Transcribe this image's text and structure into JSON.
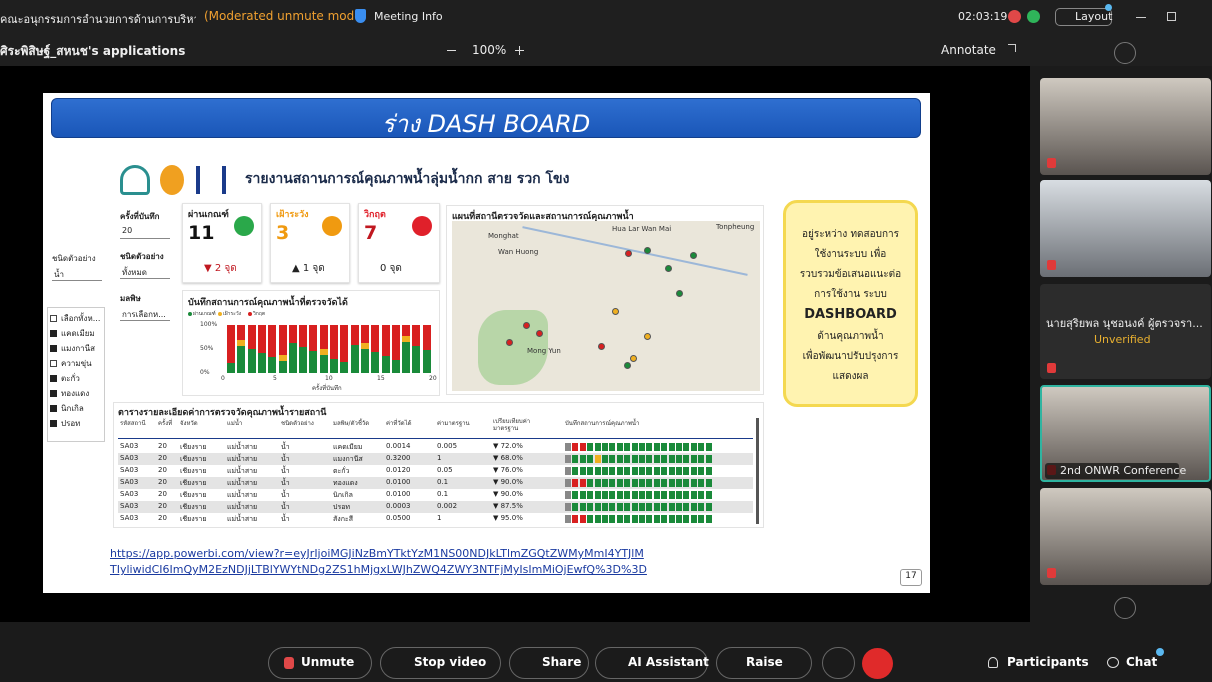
{
  "top_bar": {
    "meeting_title": "คณะอนุกรรมการอำนวยการด้านการบริหารจัด...",
    "mode": "(Moderated unmute mode)",
    "meeting_info": "Meeting Info",
    "timer": "02:03:19",
    "layout": "Layout"
  },
  "share_bar": {
    "owner": "ศิระพิสิษฐ์_สหนช's applications",
    "zoom": "100%",
    "annotate": "Annotate"
  },
  "slide": {
    "title": "ร่าง DASH BOARD",
    "dashboard": {
      "report_title": "รายงานสถานการณ์คุณภาพน้ำลุ่มน้ำกก สาย รวก โขง",
      "filters": [
        {
          "label": "ครั้งที่บันทึก",
          "value": "20"
        },
        {
          "label": "ชนิดตัวอย่าง",
          "value": "ทั้งหมด"
        },
        {
          "label": "มลพิษ",
          "value": "การเลือกห..."
        }
      ],
      "side_filter": {
        "label": "ชนิดตัวอย่าง",
        "value": "น้ำ"
      },
      "pollutant_list": [
        "เลือกทั้งห...",
        "แคดเมียม",
        "แมงกานีส",
        "ความขุ่น",
        "ตะกั่ว",
        "ทองแดง",
        "นิกเกิล",
        "ปรอท"
      ],
      "kpis": [
        {
          "label": "ผ่านเกณฑ์",
          "value": "11",
          "change": "▼ 2 จุด"
        },
        {
          "label": "เฝ้าระวัง",
          "value": "3",
          "change": "▲ 1 จุด"
        },
        {
          "label": "วิกฤต",
          "value": "7",
          "change": "0 จุด"
        }
      ],
      "chart": {
        "title": "บันทึกสถานการณ์คุณภาพน้ำที่ตรวจวัดได้",
        "legend": [
          "ผ่านเกณฑ์",
          "เฝ้าระวัง",
          "วิกฤต"
        ],
        "y_labels": [
          "100%",
          "50%",
          "0%"
        ],
        "x_labels": [
          "0",
          "5",
          "10",
          "15",
          "20"
        ],
        "x_title": "ครั้งที่บันทึก"
      },
      "map": {
        "title": "แผนที่สถานีตรวจวัดและสถานการณ์คุณภาพน้ำ",
        "places": [
          "Monghat",
          "Wan Huong",
          "Mong Yun",
          "Hua Lar Wan Mai",
          "Tonpheung"
        ]
      },
      "table": {
        "title": "ตารางรายละเอียดค่าการตรวจวัดคุณภาพน้ำรายสถานี",
        "columns": [
          "รหัสสถานี",
          "ครั้งที่",
          "จังหวัด",
          "แม่น้ำ",
          "ชนิดตัวอย่าง",
          "มลพิษ/ตัวชี้วัด",
          "ค่าที่วัดได้",
          "ค่ามาตรฐาน",
          "เปรียบเทียบค่ามาตรฐาน",
          "บันทึกสถานการณ์คุณภาพน้ำ"
        ],
        "rows": [
          [
            "SA03",
            "20",
            "เชียงราย",
            "แม่น้ำสาย",
            "น้ำ",
            "แคดเมียม",
            "0.0014",
            "0.005",
            "▼ 72.0%"
          ],
          [
            "SA03",
            "20",
            "เชียงราย",
            "แม่น้ำสาย",
            "น้ำ",
            "แมงกานีส",
            "0.3200",
            "1",
            "▼ 68.0%"
          ],
          [
            "SA03",
            "20",
            "เชียงราย",
            "แม่น้ำสาย",
            "น้ำ",
            "ตะกั่ว",
            "0.0120",
            "0.05",
            "▼ 76.0%"
          ],
          [
            "SA03",
            "20",
            "เชียงราย",
            "แม่น้ำสาย",
            "น้ำ",
            "ทองแดง",
            "0.0100",
            "0.1",
            "▼ 90.0%"
          ],
          [
            "SA03",
            "20",
            "เชียงราย",
            "แม่น้ำสาย",
            "น้ำ",
            "นิกเกิล",
            "0.0100",
            "0.1",
            "▼ 90.0%"
          ],
          [
            "SA03",
            "20",
            "เชียงราย",
            "แม่น้ำสาย",
            "น้ำ",
            "ปรอท",
            "0.0003",
            "0.002",
            "▼ 87.5%"
          ],
          [
            "SA03",
            "20",
            "เชียงราย",
            "แม่น้ำสาย",
            "น้ำ",
            "สังกะสี",
            "0.0500",
            "1",
            "▼ 95.0%"
          ]
        ]
      }
    },
    "callout": [
      "อยู่ระหว่าง ทดสอบการ",
      "ใช้งานระบบ เพื่อ",
      "รวบรวมข้อเสนอแนะต่อ",
      "การใช้งาน ระบบ",
      "DASHBOARD",
      "ด้านคุณภาพน้ำ",
      "เพื่อพัฒนาปรับปรุงการ",
      "แสดงผล"
    ],
    "link": [
      "https://app.powerbi.com/view?r=eyJrIjoiMGJiNzBmYTktYzM1NS00NDJkLTlmZGQtZWMyMmI4YTJlMTIyliwidCI6ImQyM2EzNDJjLTBlYWYtNDg2ZS1hMjgxLWJhZWQ4ZWY3NTFjMyIsImMiOjEwfQ%3D%3D"
    ],
    "page_number": "17"
  },
  "participants": [
    {
      "name": "นายสุริยพล นุชอนงค์ ผู้ตรวจรา...",
      "status": "Unverified"
    },
    {
      "name": "2nd ONWR Conference"
    }
  ],
  "toolbar": [
    "Unmute",
    "Stop video",
    "Share",
    "AI Assistant",
    "Raise",
    "Participants",
    "Chat"
  ]
}
